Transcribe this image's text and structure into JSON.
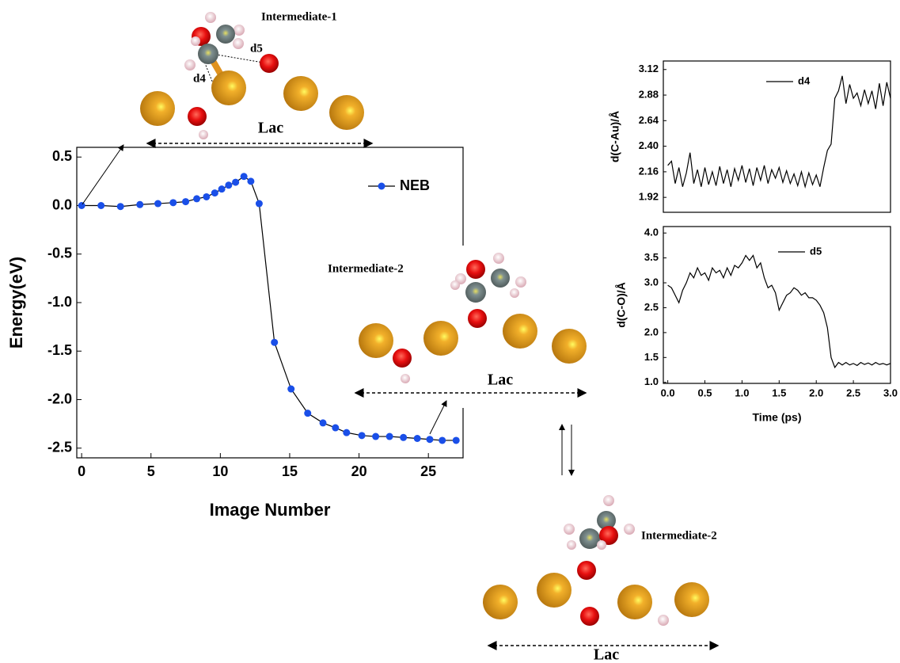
{
  "chart_data": [
    {
      "type": "line",
      "x_label": "Image Number",
      "y_label": "Energy(eV)",
      "x": [
        0,
        1.4,
        2.8,
        4.2,
        5.5,
        6.6,
        7.5,
        8.3,
        9,
        9.6,
        10.1,
        10.6,
        11.1,
        11.7,
        12.2,
        12.8,
        13.9,
        15.1,
        16.3,
        17.4,
        18.3,
        19.1,
        20.2,
        21.2,
        22.2,
        23.2,
        24.2,
        25.1,
        26,
        27
      ],
      "series": [
        {
          "name": "NEB",
          "color": "#1a4fe8",
          "line_color": "#000000",
          "values": [
            0,
            0,
            -0.01,
            0.01,
            0.02,
            0.03,
            0.04,
            0.07,
            0.09,
            0.13,
            0.17,
            0.21,
            0.24,
            0.3,
            0.25,
            0.02,
            -1.41,
            -1.89,
            -2.14,
            -2.24,
            -2.29,
            -2.34,
            -2.37,
            -2.38,
            -2.38,
            -2.39,
            -2.4,
            -2.41,
            -2.42,
            -2.42
          ]
        }
      ],
      "xlim": [
        -0.35,
        27.5
      ],
      "xticks": [
        0,
        5,
        10,
        15,
        20,
        25
      ],
      "ylim": [
        -2.6,
        0.6
      ],
      "yticks": [
        0.5,
        {
          "value": 0,
          "label": "0.0"
        },
        -0.5,
        {
          "value": -1,
          "label": "-1.0"
        },
        -1.5,
        {
          "value": -2,
          "label": "-2.0"
        },
        -2.5
      ],
      "markers": true
    },
    {
      "type": "line",
      "y_label": "d(C-Au)/Å",
      "x": [
        0,
        0.05,
        0.1,
        0.15,
        0.2,
        0.25,
        0.3,
        0.35,
        0.4,
        0.45,
        0.5,
        0.55,
        0.6,
        0.65,
        0.7,
        0.75,
        0.8,
        0.85,
        0.9,
        0.95,
        1,
        1.05,
        1.1,
        1.15,
        1.2,
        1.25,
        1.3,
        1.35,
        1.4,
        1.45,
        1.5,
        1.55,
        1.6,
        1.65,
        1.7,
        1.75,
        1.8,
        1.85,
        1.9,
        1.95,
        2,
        2.05,
        2.1,
        2.15,
        2.2,
        2.25,
        2.3,
        2.35,
        2.4,
        2.45,
        2.5,
        2.55,
        2.6,
        2.65,
        2.7,
        2.75,
        2.8,
        2.85,
        2.9,
        2.95,
        3
      ],
      "series": [
        {
          "name": "d4",
          "color": "#000000",
          "values": [
            2.22,
            2.26,
            2.05,
            2.2,
            2.02,
            2.15,
            2.34,
            2.05,
            2.18,
            2.02,
            2.2,
            2.04,
            2.16,
            2.03,
            2.21,
            2.05,
            2.18,
            2.02,
            2.19,
            2.08,
            2.22,
            2.06,
            2.19,
            2.03,
            2.2,
            2.08,
            2.22,
            2.05,
            2.18,
            2.1,
            2.2,
            2.06,
            2.17,
            2.05,
            2.14,
            2.03,
            2.16,
            2.02,
            2.15,
            2.04,
            2.13,
            2.02,
            2.2,
            2.36,
            2.42,
            2.85,
            2.92,
            3.06,
            2.8,
            2.98,
            2.85,
            2.9,
            2.78,
            2.93,
            2.8,
            2.92,
            2.75,
            2.99,
            2.78,
            3,
            2.85
          ]
        }
      ],
      "xlim": [
        -0.06,
        3
      ],
      "ylim": [
        1.78,
        3.2
      ],
      "yticks": [
        1.92,
        2.16,
        {
          "value": 2.4,
          "label": "2.40"
        },
        2.64,
        2.88,
        3.12
      ],
      "markers": false
    },
    {
      "type": "line",
      "x_label": "Time (ps)",
      "y_label": "d(C-O)/Å",
      "x": [
        0,
        0.05,
        0.1,
        0.15,
        0.2,
        0.25,
        0.3,
        0.35,
        0.4,
        0.45,
        0.5,
        0.55,
        0.6,
        0.65,
        0.7,
        0.75,
        0.8,
        0.85,
        0.9,
        0.95,
        1,
        1.05,
        1.1,
        1.15,
        1.2,
        1.25,
        1.3,
        1.35,
        1.4,
        1.45,
        1.5,
        1.55,
        1.6,
        1.65,
        1.7,
        1.75,
        1.8,
        1.85,
        1.9,
        1.95,
        2,
        2.05,
        2.1,
        2.15,
        2.2,
        2.25,
        2.3,
        2.35,
        2.4,
        2.45,
        2.5,
        2.55,
        2.6,
        2.65,
        2.7,
        2.75,
        2.8,
        2.85,
        2.9,
        2.95,
        3
      ],
      "series": [
        {
          "name": "d5",
          "color": "#000000",
          "values": [
            2.95,
            2.9,
            2.75,
            2.6,
            2.85,
            3,
            3.2,
            3.1,
            3.3,
            3.15,
            3.2,
            3.05,
            3.3,
            3.2,
            3.25,
            3.1,
            3.3,
            3.15,
            3.35,
            3.3,
            3.4,
            3.55,
            3.45,
            3.55,
            3.3,
            3.4,
            3.1,
            2.9,
            2.95,
            2.8,
            2.45,
            2.6,
            2.75,
            2.8,
            2.9,
            2.85,
            2.75,
            2.8,
            2.7,
            2.7,
            2.65,
            2.55,
            2.4,
            2.1,
            1.5,
            1.3,
            1.4,
            1.35,
            1.4,
            1.35,
            1.38,
            1.34,
            1.4,
            1.36,
            1.39,
            1.35,
            1.4,
            1.36,
            1.38,
            1.35,
            1.38
          ]
        }
      ],
      "xlim": [
        -0.06,
        3
      ],
      "xticks": [
        {
          "value": 0,
          "label": "0.0"
        },
        0.5,
        {
          "value": 1,
          "label": "1.0"
        },
        1.5,
        {
          "value": 2,
          "label": "2.0"
        },
        2.5,
        {
          "value": 3,
          "label": "3.0"
        }
      ],
      "ylim": [
        0.98,
        4.13
      ],
      "yticks": [
        {
          "value": 1,
          "label": "1.0"
        },
        1.5,
        {
          "value": 2,
          "label": "2.0"
        },
        2.5,
        {
          "value": 3,
          "label": "3.0"
        },
        3.5,
        {
          "value": 4,
          "label": "4.0"
        }
      ],
      "markers": false
    }
  ],
  "figure_labels": [
    "Intermediate-1",
    "d5",
    "d4",
    "Lac",
    "Intermediate-2",
    "Lac",
    "Intermediate-2",
    "Lac"
  ]
}
